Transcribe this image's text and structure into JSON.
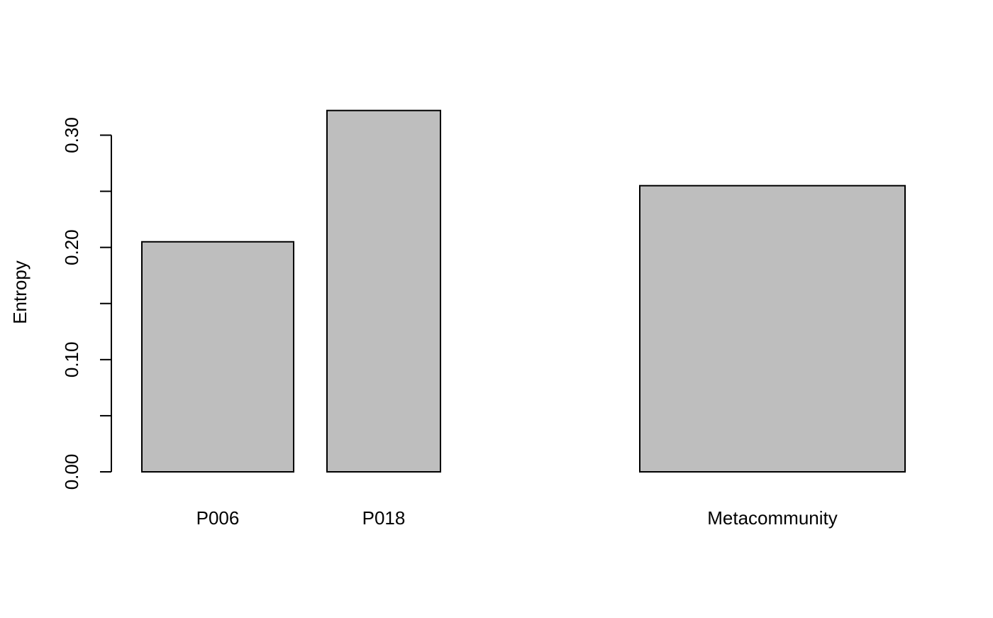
{
  "chart_data": {
    "type": "bar",
    "title": "",
    "xlabel": "",
    "ylabel": "Entropy",
    "categories": [
      "P006",
      "P018",
      "",
      "Metacommunity"
    ],
    "values": [
      0.205,
      0.322,
      0.0,
      0.255
    ],
    "ylim": [
      0,
      0.32
    ],
    "yticks": [
      0.0,
      0.05,
      0.1,
      0.15,
      0.2,
      0.25,
      0.3
    ],
    "ytick_labels": [
      "0.00",
      "",
      "0.10",
      "",
      "0.20",
      "",
      "0.30"
    ],
    "bar_color": "#bebebe",
    "bar_border_color": "#000000",
    "grid": false,
    "legend": "none"
  }
}
